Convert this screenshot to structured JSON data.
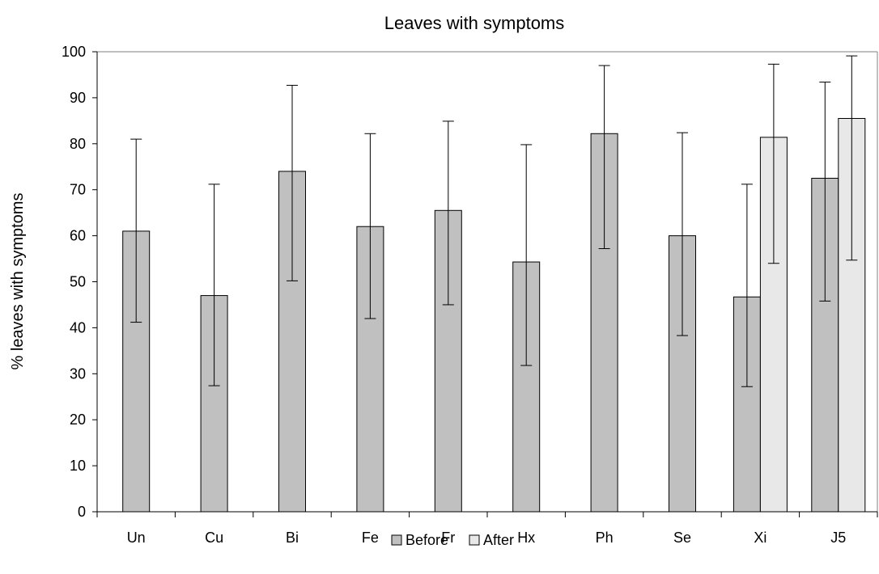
{
  "chart_data": {
    "type": "bar",
    "title": "Leaves with symptoms",
    "xlabel": "",
    "ylabel": "% leaves with symptoms",
    "ylim": [
      0,
      100
    ],
    "yticks": [
      0,
      10,
      20,
      30,
      40,
      50,
      60,
      70,
      80,
      90,
      100
    ],
    "categories": [
      "Un",
      "Cu",
      "Bi",
      "Fe",
      "Fr",
      "Hx",
      "Ph",
      "Se",
      "Xi",
      "J5"
    ],
    "series": [
      {
        "name": "Before",
        "color": "#c0c0c0",
        "values": [
          61,
          47,
          74,
          62,
          65.5,
          54.3,
          82.2,
          60,
          46.7,
          72.5
        ],
        "error_low": [
          41.2,
          27.4,
          50.2,
          42,
          45,
          31.8,
          57.2,
          38.3,
          27.2,
          45.8
        ],
        "error_high": [
          81,
          71.2,
          92.7,
          82.2,
          84.9,
          79.8,
          97,
          82.4,
          71.2,
          93.4
        ]
      },
      {
        "name": "After",
        "color": "#e8e8e8",
        "values": [
          null,
          null,
          null,
          null,
          null,
          null,
          null,
          null,
          81.4,
          85.5
        ],
        "error_low": [
          null,
          null,
          null,
          null,
          null,
          null,
          null,
          null,
          54,
          54.7
        ],
        "error_high": [
          null,
          null,
          null,
          null,
          null,
          null,
          null,
          null,
          97.3,
          99.1
        ]
      }
    ],
    "grid": false,
    "legend": "bottom-center"
  }
}
